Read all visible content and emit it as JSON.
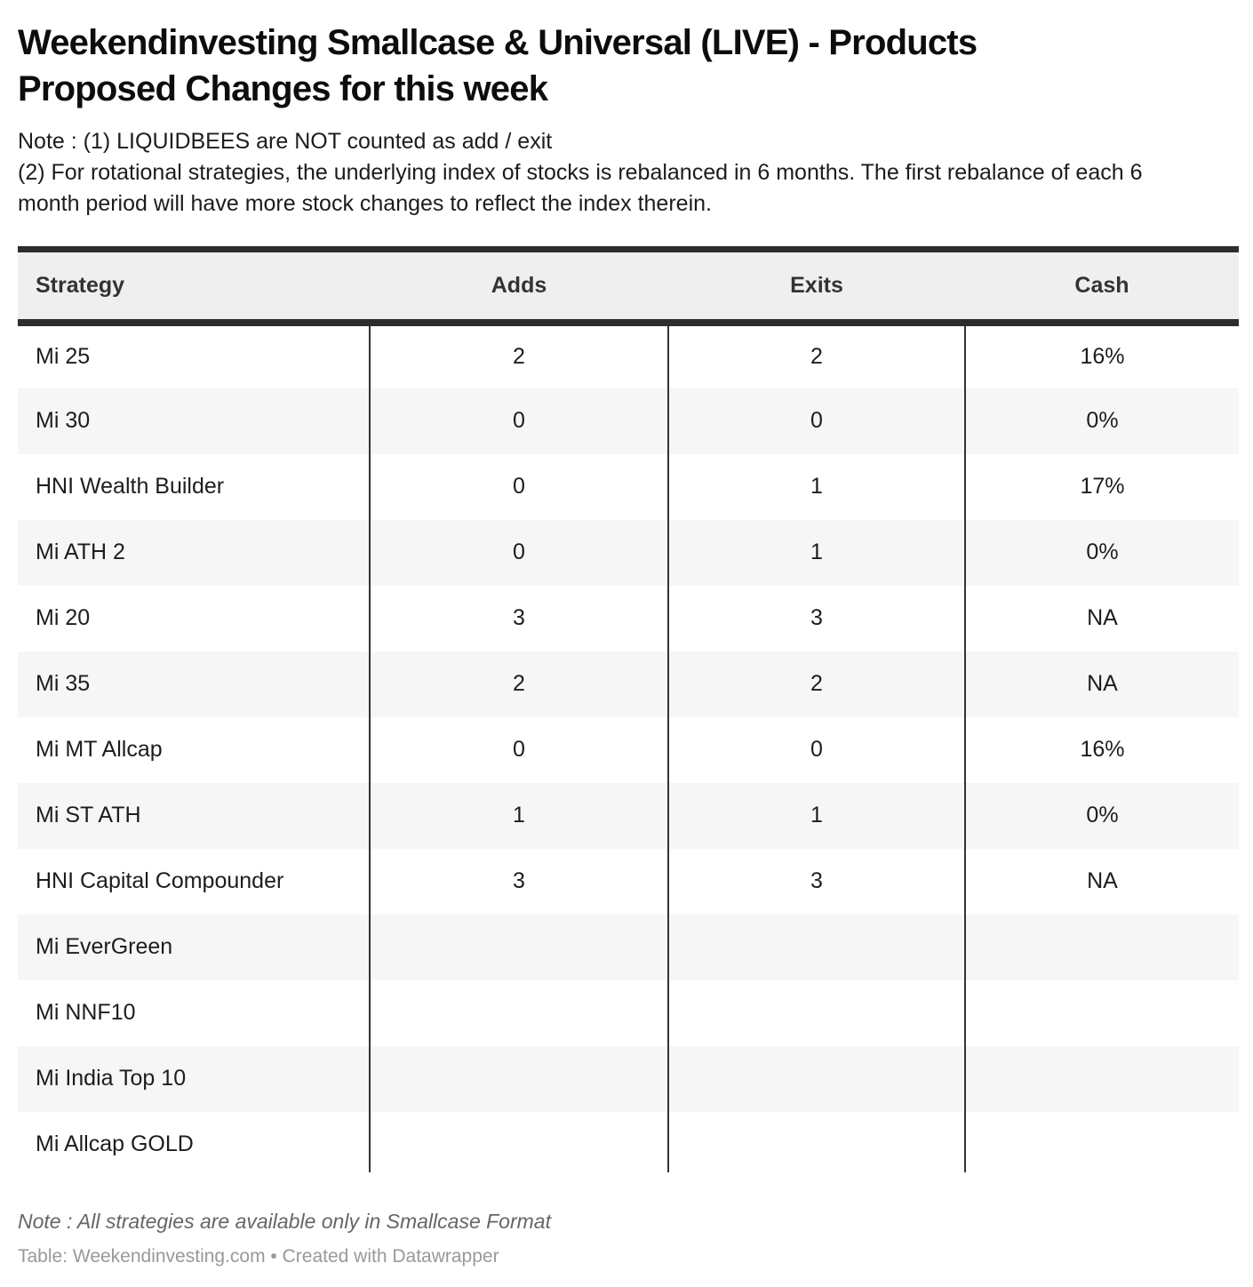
{
  "page": {
    "title_line1": "Weekendinvesting Smallcase & Universal (LIVE) - Products",
    "title_line2": "Proposed Changes for this week",
    "note_line1": "Note : (1) LIQUIDBEES are NOT counted as add / exit",
    "note_para2": "(2) For rotational strategies, the underlying index of stocks is rebalanced in 6 months. The first rebalance of each 6 month period will have more stock changes to reflect the index therein."
  },
  "chart_data": {
    "type": "table",
    "title": "Weekendinvesting Smallcase & Universal (LIVE) - Products Proposed Changes for this week",
    "columns": [
      "Strategy",
      "Adds",
      "Exits",
      "Cash"
    ],
    "rows": [
      {
        "strategy": "Mi 25",
        "adds": "2",
        "exits": "2",
        "cash": "16%"
      },
      {
        "strategy": "Mi 30",
        "adds": "0",
        "exits": "0",
        "cash": "0%"
      },
      {
        "strategy": "HNI Wealth Builder",
        "adds": "0",
        "exits": "1",
        "cash": "17%"
      },
      {
        "strategy": "Mi ATH 2",
        "adds": "0",
        "exits": "1",
        "cash": "0%"
      },
      {
        "strategy": "Mi 20",
        "adds": "3",
        "exits": "3",
        "cash": "NA"
      },
      {
        "strategy": "Mi 35",
        "adds": "2",
        "exits": "2",
        "cash": "NA"
      },
      {
        "strategy": "Mi MT Allcap",
        "adds": "0",
        "exits": "0",
        "cash": "16%"
      },
      {
        "strategy": "Mi ST ATH",
        "adds": "1",
        "exits": "1",
        "cash": "0%"
      },
      {
        "strategy": "HNI Capital Compounder",
        "adds": "3",
        "exits": "3",
        "cash": "NA"
      },
      {
        "strategy": "Mi EverGreen",
        "adds": "",
        "exits": "",
        "cash": ""
      },
      {
        "strategy": "Mi NNF10",
        "adds": "",
        "exits": "",
        "cash": ""
      },
      {
        "strategy": "Mi India Top 10",
        "adds": "",
        "exits": "",
        "cash": ""
      },
      {
        "strategy": "Mi Allcap GOLD",
        "adds": "",
        "exits": "",
        "cash": ""
      }
    ],
    "layout": {
      "striped_rows": true,
      "column_dividers": true,
      "header_bars": true,
      "bottom_truncated": true
    }
  },
  "footer": {
    "note": "Note : All strategies are available only in Smallcase Format",
    "attribution": "Table: Weekendinvesting.com • Created with Datawrapper"
  },
  "colors": {
    "bar_dark": "#2d2d2d",
    "header_bg": "#efefef",
    "alt_row_bg": "#f6f6f6",
    "column_divider": "#333333",
    "title_text": "#0d0d0d",
    "body_text": "#1d1d1d",
    "footer_note_text": "#666666",
    "attribution_text": "#999999"
  }
}
